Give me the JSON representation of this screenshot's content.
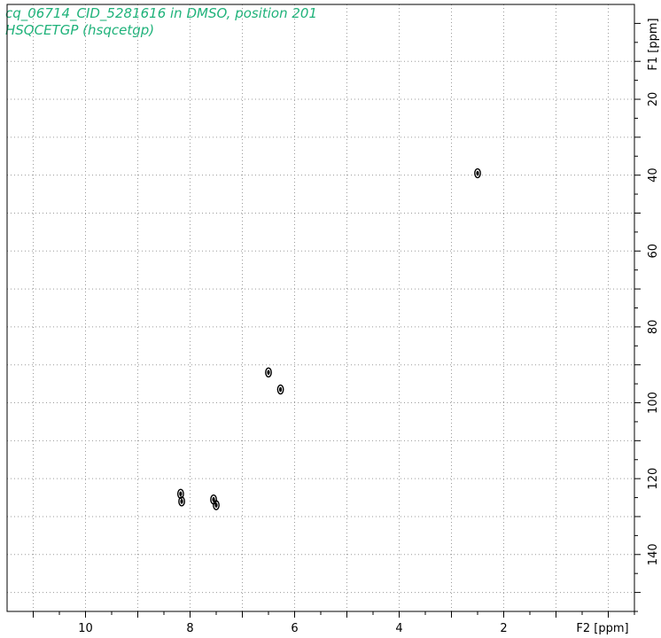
{
  "header": {
    "title_line1": "cq_06714_CID_5281616 in DMSO, position 201",
    "title_line2": "HSQCETGP (hsqcetgp)"
  },
  "colors": {
    "title": "#1fb27a",
    "contour": "#000000",
    "grid": "#9a9a9a"
  },
  "chart_data": {
    "type": "scatter",
    "subtype": "2D NMR HSQC contour",
    "xlabel": "F2 [ppm]",
    "ylabel": "F1 [ppm]",
    "xlim": [
      11.5,
      -0.5
    ],
    "ylim": [
      -5,
      155
    ],
    "x_reversed": true,
    "y_reversed": true,
    "x_major_ticks": [
      10,
      8,
      6,
      4,
      2
    ],
    "y_major_ticks": [
      20,
      40,
      60,
      80,
      100,
      120,
      140
    ],
    "grid": true,
    "peaks": [
      {
        "x": 2.5,
        "y": 39.5
      },
      {
        "x": 6.5,
        "y": 92.0
      },
      {
        "x": 6.27,
        "y": 96.5
      },
      {
        "x": 8.18,
        "y": 124.0
      },
      {
        "x": 8.16,
        "y": 126.0
      },
      {
        "x": 7.55,
        "y": 125.5
      },
      {
        "x": 7.5,
        "y": 127.0
      }
    ]
  }
}
